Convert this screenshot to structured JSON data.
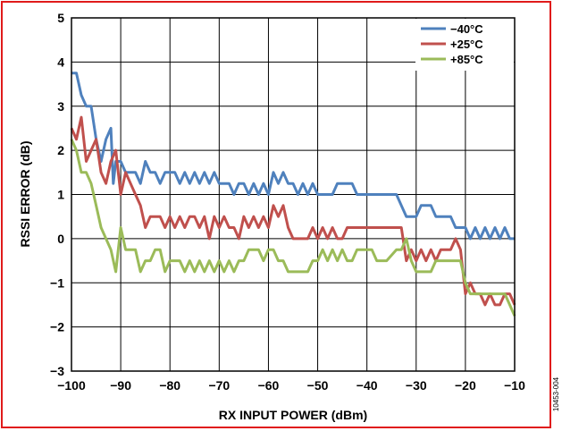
{
  "frame": {
    "border_color": "#e01b1b"
  },
  "figure_id": "10453-004",
  "chart_data": {
    "type": "line",
    "title": "",
    "xlabel": "RX INPUT POWER (dBm)",
    "ylabel": "RSSI ERROR (dB)",
    "xlim": [
      -100,
      -10
    ],
    "ylim": [
      -3,
      5
    ],
    "x_ticks": [
      -100,
      -90,
      -80,
      -70,
      -60,
      -50,
      -40,
      -30,
      -20,
      -10
    ],
    "y_ticks": [
      -3,
      -2,
      -1,
      0,
      1,
      2,
      3,
      4,
      5
    ],
    "x_tick_labels": [
      "−100",
      "−90",
      "−80",
      "−70",
      "−60",
      "−50",
      "−40",
      "−30",
      "−20",
      "−10"
    ],
    "y_tick_labels": [
      "−3",
      "−2",
      "−1",
      "0",
      "1",
      "2",
      "3",
      "4",
      "5"
    ],
    "grid": true,
    "legend_position": "top-right",
    "series": [
      {
        "name": "−40°C",
        "color": "#4f81bd",
        "points": [
          [
            -100,
            3.75
          ],
          [
            -99,
            3.75
          ],
          [
            -98,
            3.25
          ],
          [
            -97,
            3.0
          ],
          [
            -96,
            3.0
          ],
          [
            -95,
            2.25
          ],
          [
            -94,
            1.75
          ],
          [
            -93,
            2.25
          ],
          [
            -92,
            2.5
          ],
          [
            -91.5,
            1.25
          ],
          [
            -91,
            1.75
          ],
          [
            -90,
            1.75
          ],
          [
            -89,
            1.5
          ],
          [
            -88,
            1.5
          ],
          [
            -87,
            1.5
          ],
          [
            -86,
            1.25
          ],
          [
            -85,
            1.75
          ],
          [
            -84,
            1.5
          ],
          [
            -83,
            1.5
          ],
          [
            -82,
            1.25
          ],
          [
            -81,
            1.5
          ],
          [
            -80,
            1.5
          ],
          [
            -79,
            1.5
          ],
          [
            -78,
            1.25
          ],
          [
            -77,
            1.5
          ],
          [
            -76,
            1.25
          ],
          [
            -75,
            1.5
          ],
          [
            -74,
            1.25
          ],
          [
            -73,
            1.5
          ],
          [
            -72,
            1.25
          ],
          [
            -71,
            1.5
          ],
          [
            -70,
            1.25
          ],
          [
            -69,
            1.25
          ],
          [
            -68,
            1.25
          ],
          [
            -67,
            1.0
          ],
          [
            -66,
            1.25
          ],
          [
            -65,
            1.25
          ],
          [
            -64,
            1.0
          ],
          [
            -63,
            1.25
          ],
          [
            -62,
            1.0
          ],
          [
            -61,
            1.25
          ],
          [
            -60,
            1.0
          ],
          [
            -59,
            1.5
          ],
          [
            -58,
            1.25
          ],
          [
            -57,
            1.5
          ],
          [
            -56,
            1.25
          ],
          [
            -55,
            1.25
          ],
          [
            -54,
            1.0
          ],
          [
            -53,
            1.25
          ],
          [
            -52,
            1.0
          ],
          [
            -51,
            1.25
          ],
          [
            -50,
            1.0
          ],
          [
            -49,
            1.0
          ],
          [
            -48,
            1.0
          ],
          [
            -47,
            1.0
          ],
          [
            -46,
            1.25
          ],
          [
            -45,
            1.25
          ],
          [
            -44,
            1.25
          ],
          [
            -43,
            1.25
          ],
          [
            -42,
            1.0
          ],
          [
            -41,
            1.0
          ],
          [
            -40,
            1.0
          ],
          [
            -38,
            1.0
          ],
          [
            -36,
            1.0
          ],
          [
            -34,
            1.0
          ],
          [
            -33,
            0.75
          ],
          [
            -32,
            0.5
          ],
          [
            -31,
            0.5
          ],
          [
            -30,
            0.5
          ],
          [
            -29,
            0.75
          ],
          [
            -28,
            0.75
          ],
          [
            -27,
            0.75
          ],
          [
            -26,
            0.5
          ],
          [
            -25,
            0.5
          ],
          [
            -24,
            0.5
          ],
          [
            -23,
            0.5
          ],
          [
            -22,
            0.25
          ],
          [
            -21,
            0.25
          ],
          [
            -20,
            0.25
          ],
          [
            -19,
            0.0
          ],
          [
            -18,
            0.25
          ],
          [
            -17,
            0.0
          ],
          [
            -16,
            0.25
          ],
          [
            -15,
            0.0
          ],
          [
            -14,
            0.25
          ],
          [
            -13,
            0.0
          ],
          [
            -12,
            0.25
          ],
          [
            -11,
            0.0
          ],
          [
            -10,
            0.0
          ]
        ]
      },
      {
        "name": "+25°C",
        "color": "#c0504d",
        "points": [
          [
            -100,
            2.5
          ],
          [
            -99,
            2.25
          ],
          [
            -98,
            2.75
          ],
          [
            -97,
            1.75
          ],
          [
            -96,
            2.0
          ],
          [
            -95,
            2.25
          ],
          [
            -94,
            1.5
          ],
          [
            -93,
            1.25
          ],
          [
            -92,
            1.75
          ],
          [
            -91,
            2.0
          ],
          [
            -90,
            1.0
          ],
          [
            -89,
            1.5
          ],
          [
            -88,
            1.25
          ],
          [
            -87,
            1.0
          ],
          [
            -86,
            0.75
          ],
          [
            -85,
            0.25
          ],
          [
            -84,
            0.5
          ],
          [
            -83,
            0.5
          ],
          [
            -82,
            0.5
          ],
          [
            -81,
            0.25
          ],
          [
            -80,
            0.5
          ],
          [
            -79,
            0.25
          ],
          [
            -78,
            0.5
          ],
          [
            -77,
            0.25
          ],
          [
            -76,
            0.5
          ],
          [
            -75,
            0.5
          ],
          [
            -74,
            0.25
          ],
          [
            -73,
            0.5
          ],
          [
            -72,
            0.0
          ],
          [
            -71,
            0.5
          ],
          [
            -70,
            0.25
          ],
          [
            -69,
            0.5
          ],
          [
            -68,
            0.25
          ],
          [
            -67,
            0.25
          ],
          [
            -66,
            0.0
          ],
          [
            -65,
            0.5
          ],
          [
            -64,
            0.25
          ],
          [
            -63,
            0.5
          ],
          [
            -62,
            0.25
          ],
          [
            -61,
            0.5
          ],
          [
            -60,
            0.25
          ],
          [
            -59,
            0.75
          ],
          [
            -58,
            0.5
          ],
          [
            -57,
            0.75
          ],
          [
            -56,
            0.25
          ],
          [
            -55,
            0.0
          ],
          [
            -54,
            0.0
          ],
          [
            -53,
            0.0
          ],
          [
            -52,
            0.0
          ],
          [
            -51,
            0.25
          ],
          [
            -50,
            0.0
          ],
          [
            -49,
            0.25
          ],
          [
            -48,
            0.0
          ],
          [
            -47,
            0.25
          ],
          [
            -46,
            0.0
          ],
          [
            -45,
            0.0
          ],
          [
            -44,
            0.25
          ],
          [
            -43,
            0.25
          ],
          [
            -42,
            0.25
          ],
          [
            -41,
            0.25
          ],
          [
            -40,
            0.25
          ],
          [
            -38,
            0.25
          ],
          [
            -36,
            0.25
          ],
          [
            -34,
            0.25
          ],
          [
            -33,
            0.25
          ],
          [
            -32,
            -0.5
          ],
          [
            -31,
            -0.25
          ],
          [
            -30,
            -0.5
          ],
          [
            -29,
            -0.25
          ],
          [
            -28,
            -0.5
          ],
          [
            -27,
            -0.25
          ],
          [
            -26,
            -0.5
          ],
          [
            -25,
            -0.25
          ],
          [
            -24,
            -0.25
          ],
          [
            -23,
            -0.25
          ],
          [
            -22,
            0.0
          ],
          [
            -21,
            -0.25
          ],
          [
            -20,
            -1.25
          ],
          [
            -19,
            -1.0
          ],
          [
            -18,
            -1.25
          ],
          [
            -17,
            -1.25
          ],
          [
            -16,
            -1.5
          ],
          [
            -15,
            -1.25
          ],
          [
            -14,
            -1.5
          ],
          [
            -13,
            -1.5
          ],
          [
            -12,
            -1.25
          ],
          [
            -11,
            -1.25
          ],
          [
            -10,
            -1.5
          ]
        ]
      },
      {
        "name": "+85°C",
        "color": "#9bbb59",
        "points": [
          [
            -100,
            2.25
          ],
          [
            -99,
            2.0
          ],
          [
            -98,
            1.5
          ],
          [
            -97,
            1.5
          ],
          [
            -96,
            1.25
          ],
          [
            -95,
            0.75
          ],
          [
            -94,
            0.25
          ],
          [
            -93,
            0.0
          ],
          [
            -92,
            -0.25
          ],
          [
            -91,
            -0.75
          ],
          [
            -90,
            0.25
          ],
          [
            -89,
            -0.25
          ],
          [
            -88,
            -0.25
          ],
          [
            -87,
            -0.25
          ],
          [
            -86,
            -0.75
          ],
          [
            -85,
            -0.5
          ],
          [
            -84,
            -0.5
          ],
          [
            -83,
            -0.25
          ],
          [
            -82,
            -0.25
          ],
          [
            -81,
            -0.75
          ],
          [
            -80,
            -0.5
          ],
          [
            -79,
            -0.5
          ],
          [
            -78,
            -0.5
          ],
          [
            -77,
            -0.75
          ],
          [
            -76,
            -0.5
          ],
          [
            -75,
            -0.75
          ],
          [
            -74,
            -0.5
          ],
          [
            -73,
            -0.75
          ],
          [
            -72,
            -0.5
          ],
          [
            -71,
            -0.75
          ],
          [
            -70,
            -0.5
          ],
          [
            -69,
            -0.75
          ],
          [
            -68,
            -0.5
          ],
          [
            -67,
            -0.75
          ],
          [
            -66,
            -0.5
          ],
          [
            -65,
            -0.5
          ],
          [
            -64,
            -0.25
          ],
          [
            -63,
            -0.25
          ],
          [
            -62,
            -0.25
          ],
          [
            -61,
            -0.5
          ],
          [
            -60,
            -0.25
          ],
          [
            -59,
            -0.25
          ],
          [
            -58,
            -0.5
          ],
          [
            -57,
            -0.5
          ],
          [
            -56,
            -0.75
          ],
          [
            -55,
            -0.75
          ],
          [
            -54,
            -0.75
          ],
          [
            -53,
            -0.75
          ],
          [
            -52,
            -0.75
          ],
          [
            -51,
            -0.5
          ],
          [
            -50,
            -0.5
          ],
          [
            -49,
            -0.25
          ],
          [
            -48,
            -0.5
          ],
          [
            -47,
            -0.25
          ],
          [
            -46,
            -0.5
          ],
          [
            -45,
            -0.25
          ],
          [
            -44,
            -0.5
          ],
          [
            -43,
            -0.5
          ],
          [
            -42,
            -0.25
          ],
          [
            -41,
            -0.25
          ],
          [
            -40,
            -0.25
          ],
          [
            -39,
            -0.25
          ],
          [
            -38,
            -0.5
          ],
          [
            -36,
            -0.5
          ],
          [
            -34,
            -0.25
          ],
          [
            -33,
            -0.25
          ],
          [
            -32,
            0.0
          ],
          [
            -31,
            -0.5
          ],
          [
            -30,
            -0.75
          ],
          [
            -28,
            -0.75
          ],
          [
            -27,
            -0.75
          ],
          [
            -26,
            -0.5
          ],
          [
            -25,
            -0.5
          ],
          [
            -24,
            -0.5
          ],
          [
            -23,
            -0.5
          ],
          [
            -22,
            -0.5
          ],
          [
            -21,
            -0.5
          ],
          [
            -20,
            -1.0
          ],
          [
            -19,
            -1.25
          ],
          [
            -18,
            -1.25
          ],
          [
            -17,
            -1.25
          ],
          [
            -16,
            -1.25
          ],
          [
            -15,
            -1.25
          ],
          [
            -14,
            -1.25
          ],
          [
            -13,
            -1.25
          ],
          [
            -12,
            -1.25
          ],
          [
            -11,
            -1.5
          ],
          [
            -10,
            -1.75
          ]
        ]
      }
    ]
  }
}
